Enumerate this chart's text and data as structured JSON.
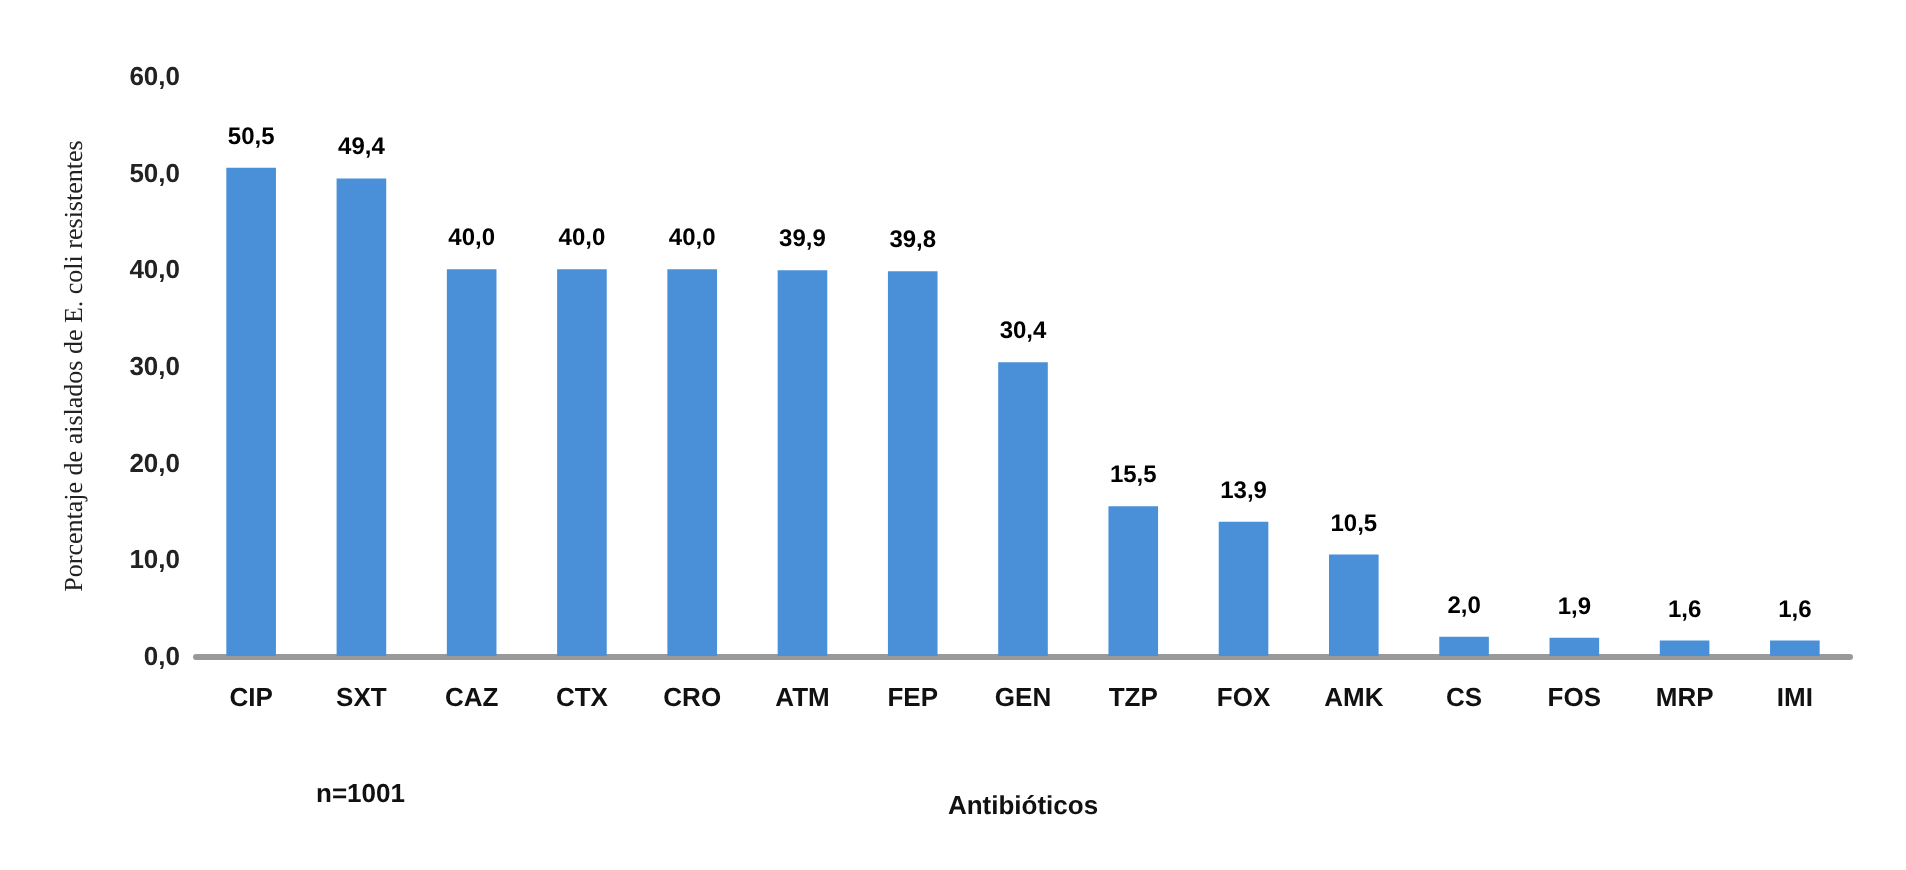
{
  "chart_data": {
    "type": "bar",
    "categories": [
      "CIP",
      "SXT",
      "CAZ",
      "CTX",
      "CRO",
      "ATM",
      "FEP",
      "GEN",
      "TZP",
      "FOX",
      "AMK",
      "CS",
      "FOS",
      "MRP",
      "IMI"
    ],
    "values": [
      50.5,
      49.4,
      40.0,
      40.0,
      40.0,
      39.9,
      39.8,
      30.4,
      15.5,
      13.9,
      10.5,
      2.0,
      1.9,
      1.6,
      1.6
    ],
    "value_labels": [
      "50,5",
      "49,4",
      "40,0",
      "40,0",
      "40,0",
      "39,9",
      "39,8",
      "30,4",
      "15,5",
      "13,9",
      "10,5",
      "2,0",
      "1,9",
      "1,6",
      "1,6"
    ],
    "color": "#4a90d9",
    "xlabel": "Antibióticos",
    "ylabel": "Porcentaje de aislados de E. coli resistentes",
    "ylim": [
      0,
      60
    ],
    "yticks": [
      {
        "value": 0,
        "label": "0,0"
      },
      {
        "value": 10,
        "label": "10,0"
      },
      {
        "value": 20,
        "label": "20,0"
      },
      {
        "value": 30,
        "label": "30,0"
      },
      {
        "value": 40,
        "label": "40,0"
      },
      {
        "value": 50,
        "label": "50,0"
      },
      {
        "value": 60,
        "label": "60,0"
      }
    ],
    "annotations": [
      "n=1001"
    ],
    "grid": false
  }
}
